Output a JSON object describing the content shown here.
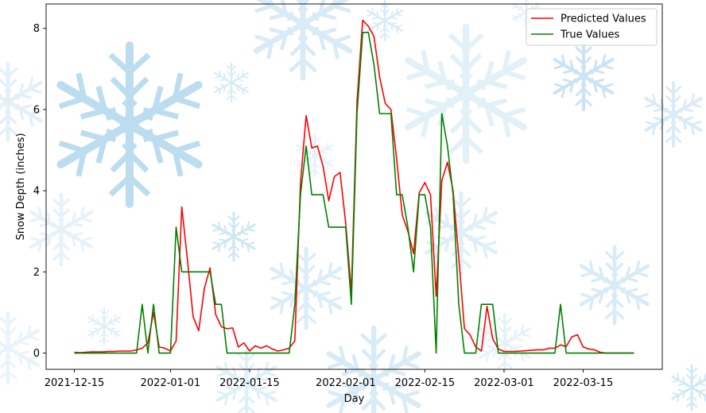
{
  "chart_data": {
    "type": "line",
    "title": "",
    "xlabel": "Day",
    "ylabel": "Snow Depth (inches)",
    "x_start": "2021-12-15",
    "x_end": "2022-03-24",
    "xlim": [
      "2021-12-10",
      "2022-03-29"
    ],
    "ylim": [
      -0.4,
      8.6
    ],
    "x_ticks": [
      "2021-12-15",
      "2022-01-01",
      "2022-01-15",
      "2022-02-01",
      "2022-02-15",
      "2022-03-01",
      "2022-03-15"
    ],
    "y_ticks": [
      0,
      2,
      4,
      6,
      8
    ],
    "legend_position": "top-right",
    "grid": false,
    "series": [
      {
        "name": "Predicted Values",
        "color": "#ff0000",
        "values": [
          0.02,
          0.01,
          0.02,
          0.03,
          0.03,
          0.03,
          0.04,
          0.04,
          0.05,
          0.05,
          0.05,
          0.08,
          0.12,
          0.25,
          1.0,
          0.15,
          0.12,
          0.05,
          0.3,
          3.6,
          2.3,
          0.9,
          0.55,
          1.6,
          2.1,
          0.95,
          0.65,
          0.6,
          0.62,
          0.15,
          0.25,
          0.05,
          0.18,
          0.12,
          0.18,
          0.1,
          0.05,
          0.08,
          0.12,
          0.3,
          4.2,
          5.85,
          5.05,
          5.1,
          4.6,
          3.75,
          4.35,
          4.45,
          3.2,
          1.5,
          6.2,
          8.2,
          8.05,
          7.8,
          6.8,
          6.15,
          6.0,
          4.8,
          3.4,
          3.0,
          2.45,
          3.95,
          4.2,
          3.9,
          1.4,
          4.25,
          4.7,
          4.0,
          2.35,
          0.6,
          0.45,
          0.15,
          0.05,
          1.15,
          0.35,
          0.1,
          0.04,
          0.04,
          0.04,
          0.05,
          0.06,
          0.07,
          0.08,
          0.08,
          0.12,
          0.12,
          0.2,
          0.16,
          0.4,
          0.45,
          0.15,
          0.1,
          0.08,
          0.02,
          0.0,
          0.0,
          0.0,
          0.0,
          0.0,
          0.0
        ]
      },
      {
        "name": "True Values",
        "color": "#008000",
        "values": [
          0.0,
          0.0,
          0.0,
          0.0,
          0.0,
          0.0,
          0.0,
          0.0,
          0.0,
          0.0,
          0.0,
          0.0,
          1.2,
          0.0,
          1.2,
          0.0,
          0.0,
          0.0,
          3.1,
          2.0,
          2.0,
          2.0,
          2.0,
          2.0,
          2.0,
          1.2,
          1.2,
          0.0,
          0.0,
          0.0,
          0.0,
          0.0,
          0.0,
          0.0,
          0.0,
          0.0,
          0.0,
          0.0,
          0.0,
          1.2,
          3.9,
          5.1,
          3.9,
          3.9,
          3.9,
          3.1,
          3.1,
          3.1,
          3.1,
          1.2,
          5.9,
          7.9,
          7.9,
          7.1,
          5.9,
          5.9,
          5.9,
          3.9,
          3.9,
          3.1,
          2.0,
          3.9,
          3.9,
          3.1,
          0.0,
          5.9,
          5.1,
          3.9,
          1.2,
          0.0,
          0.0,
          0.0,
          1.2,
          1.2,
          1.2,
          0.0,
          0.0,
          0.0,
          0.0,
          0.0,
          0.0,
          0.0,
          0.0,
          0.0,
          0.0,
          0.0,
          1.2,
          0.0,
          0.0,
          0.0,
          0.0,
          0.0,
          0.0,
          0.0,
          0.0,
          0.0,
          0.0,
          0.0,
          0.0,
          0.0
        ]
      }
    ]
  },
  "decor": {
    "snowflake_color": "#b9dcf0"
  }
}
